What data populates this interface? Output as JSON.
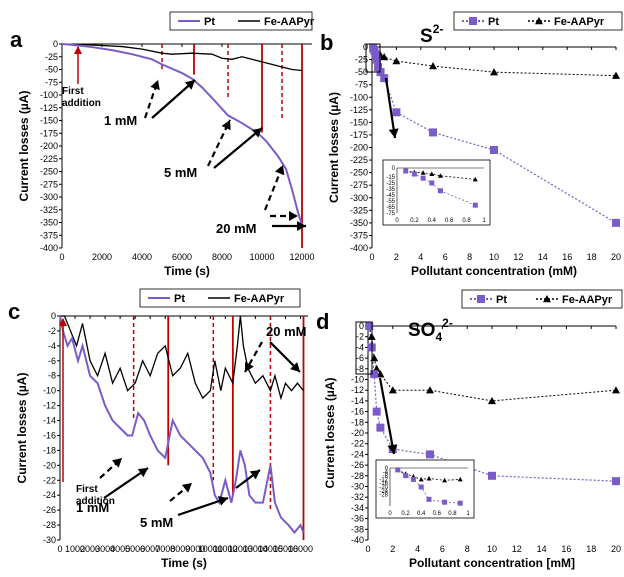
{
  "colors": {
    "pt": "#7b5bc9",
    "fe": "#000000",
    "marker": "#c00000"
  },
  "panels": {
    "a": {
      "label": "a",
      "type": "line",
      "xlabel": "Time (s)",
      "ylabel": "Current losses (µA)",
      "xlim": [
        0,
        12500
      ],
      "ylim": [
        -400,
        0
      ],
      "xticks": [
        0,
        2000,
        4000,
        6000,
        8000,
        10000,
        12000
      ],
      "yticks": [
        0,
        -25,
        -50,
        -75,
        -100,
        -125,
        -150,
        -175,
        -200,
        -225,
        -250,
        -275,
        -300,
        -325,
        -350,
        -375,
        -400
      ],
      "legend": [
        "Pt",
        "Fe-AAPyr"
      ],
      "series": {
        "Pt": {
          "x": [
            0,
            600,
            1500,
            2500,
            3500,
            4500,
            5000,
            6000,
            6500,
            7000,
            7600,
            8300,
            9000,
            9800,
            10200,
            10800,
            11200,
            11500,
            11800,
            12000
          ],
          "y": [
            0,
            -2,
            -6,
            -12,
            -20,
            -30,
            -40,
            -57,
            -68,
            -85,
            -110,
            -140,
            -155,
            -175,
            -190,
            -220,
            -245,
            -285,
            -330,
            -355
          ]
        },
        "Fe-AAPyr": {
          "x": [
            0,
            1000,
            2000,
            3000,
            4000,
            5000,
            5500,
            6500,
            7500,
            8000,
            8500,
            9000,
            10000,
            10500,
            11000,
            11500,
            12000
          ],
          "y": [
            0,
            -1,
            -3,
            -5,
            -10,
            -18,
            -20,
            -18,
            -20,
            -28,
            -30,
            -25,
            -35,
            -40,
            -45,
            -50,
            -52
          ]
        }
      },
      "dashed_markers": [
        5000,
        8300,
        11000
      ],
      "solid_markers": [
        6600,
        10000,
        12000
      ],
      "first_addition_x": 800,
      "first_addition_text": [
        "First",
        "addition"
      ],
      "annotations": [
        "1 mM",
        "5 mM",
        "20 mM"
      ]
    },
    "b": {
      "label": "b",
      "type": "line",
      "ion": "S",
      "ion_sup": "2-",
      "xlabel": "Pollutant concentration (mM)",
      "ylabel": "Current losses (µA)",
      "xlim": [
        0,
        20
      ],
      "ylim": [
        -400,
        0
      ],
      "xticks": [
        0,
        2,
        4,
        6,
        8,
        10,
        12,
        14,
        16,
        18,
        20
      ],
      "yticks": [
        0,
        -25,
        -50,
        -75,
        -100,
        -125,
        -150,
        -175,
        -200,
        -225,
        -250,
        -275,
        -300,
        -325,
        -350,
        -375,
        -400
      ],
      "legend": [
        "Pt",
        "Fe-AAPyr"
      ],
      "series": {
        "Pt": {
          "x": [
            0.1,
            0.2,
            0.3,
            0.4,
            0.5,
            0.7,
            1,
            2,
            5,
            10,
            20
          ],
          "y": [
            -3,
            -8,
            -15,
            -25,
            -40,
            -50,
            -62,
            -130,
            -170,
            -205,
            -350
          ]
        },
        "Fe-AAPyr": {
          "x": [
            0.1,
            0.2,
            0.3,
            0.4,
            0.5,
            0.7,
            1,
            2,
            5,
            10,
            20
          ],
          "y": [
            -3,
            -6,
            -8,
            -10,
            -14,
            -17,
            -20,
            -28,
            -38,
            -50,
            -57
          ]
        }
      },
      "inset": {
        "xlim": [
          0,
          1
        ],
        "ylim": [
          -75,
          0
        ],
        "xticks": [
          0,
          0.2,
          0.4,
          0.6,
          0.8,
          1
        ],
        "yticks": [
          0,
          -15,
          -25,
          -35,
          -45,
          -55,
          -65,
          -75
        ],
        "series": {
          "Pt": {
            "x": [
              0.1,
              0.2,
              0.3,
              0.4,
              0.5,
              0.9
            ],
            "y": [
              -5,
              -10,
              -17,
              -25,
              -38,
              -62
            ]
          },
          "Fe-AAPyr": {
            "x": [
              0.1,
              0.2,
              0.3,
              0.4,
              0.5,
              0.9
            ],
            "y": [
              -5,
              -7,
              -8,
              -10,
              -13,
              -19
            ]
          }
        }
      }
    },
    "c": {
      "label": "c",
      "type": "line",
      "xlabel": "Time (s)",
      "ylabel": "Current losses (µA)",
      "xlim": [
        0,
        16500
      ],
      "ylim": [
        -30,
        0
      ],
      "xticks": [
        0,
        1000,
        2000,
        3000,
        4000,
        5000,
        6000,
        7000,
        8000,
        9000,
        10000,
        11000,
        12000,
        13000,
        14000,
        15000,
        16000
      ],
      "yticks": [
        0,
        -2,
        -4,
        -6,
        -8,
        -10,
        -12,
        -14,
        -16,
        -18,
        -20,
        -22,
        -24,
        -26,
        -28,
        -30
      ],
      "legend": [
        "Pt",
        "Fe-AAPyr"
      ],
      "series": {
        "Pt": {
          "x": [
            0,
            200,
            500,
            800,
            1200,
            1500,
            2000,
            2500,
            3000,
            3500,
            4000,
            4500,
            4800,
            5200,
            5600,
            6000,
            6500,
            7000,
            7200,
            7500,
            8000,
            8500,
            9000,
            9500,
            10000,
            10300,
            10600,
            11000,
            11400,
            11700,
            12000,
            12300,
            12600,
            13000,
            13500,
            14000,
            14300,
            14700,
            15200,
            15600,
            16000,
            16200
          ],
          "y": [
            0,
            -2,
            -4,
            -3,
            -6,
            -4,
            -8,
            -9,
            -12,
            -14,
            -15,
            -16,
            -16,
            -13,
            -14,
            -16,
            -18,
            -19,
            -17,
            -14,
            -16,
            -17,
            -18,
            -19,
            -21,
            -24,
            -25,
            -22,
            -25,
            -22,
            -18,
            -20,
            -24,
            -25,
            -25,
            -20,
            -25,
            -27,
            -28,
            -29,
            -28,
            -29
          ]
        },
        "Fe-AAPyr": {
          "x": [
            0,
            300,
            700,
            1100,
            1500,
            2000,
            2500,
            3000,
            3500,
            4000,
            4500,
            5000,
            5500,
            6000,
            6500,
            7000,
            7500,
            8000,
            8500,
            9000,
            9500,
            10000,
            10300,
            10700,
            11000,
            11500,
            11800,
            12000,
            12200,
            12500,
            13000,
            13500,
            14000,
            14300,
            14700,
            15000,
            15400,
            15800,
            16200
          ],
          "y": [
            0,
            0,
            -2,
            -4,
            -1,
            -6,
            -8,
            -5,
            -9,
            -7,
            -10,
            -9,
            -6,
            -8,
            -5,
            -4,
            -8,
            -7,
            -5,
            -9,
            -11,
            -10,
            -6,
            -10,
            -7,
            -9,
            -4,
            0,
            -4,
            -7,
            -9,
            -8,
            -10,
            -8,
            -11,
            -9,
            -10,
            -9,
            -10
          ]
        }
      },
      "dashed_markers": [
        4900,
        10200,
        14000
      ],
      "solid_markers": [
        7200,
        11500,
        16200
      ],
      "first_addition_x": 200,
      "first_addition_text": [
        "First",
        "addition"
      ],
      "annotations": [
        "1 mM",
        "5 mM",
        "20 mM"
      ]
    },
    "d": {
      "label": "d",
      "type": "line",
      "ion": "SO",
      "ion_sub": "4",
      "ion_sup": "2-",
      "xlabel": "Pollutant concentration [mM]",
      "ylabel": "Current losses (µA)",
      "xlim": [
        0,
        20
      ],
      "ylim": [
        -40,
        0
      ],
      "xticks": [
        0,
        2,
        4,
        6,
        8,
        10,
        12,
        14,
        16,
        18,
        20
      ],
      "yticks": [
        0,
        -2,
        -4,
        -6,
        -8,
        -10,
        -12,
        -14,
        -16,
        -18,
        -20,
        -22,
        -24,
        -26,
        -28,
        -30,
        -32,
        -34,
        -36,
        -38,
        -40
      ],
      "legend": [
        "Pt",
        "Fe-AAPyr"
      ],
      "series": {
        "Pt": {
          "x": [
            0.1,
            0.3,
            0.5,
            0.7,
            1,
            2,
            5,
            10,
            20
          ],
          "y": [
            0,
            -4,
            -9,
            -16,
            -19,
            -23,
            -24,
            -28,
            -29
          ]
        },
        "Fe-AAPyr": {
          "x": [
            0.1,
            0.3,
            0.5,
            0.7,
            1,
            2,
            5,
            10,
            20
          ],
          "y": [
            0,
            -2,
            -6,
            -8,
            -9,
            -12,
            -12,
            -14,
            -12
          ]
        }
      },
      "inset": {
        "xlim": [
          0,
          1
        ],
        "ylim": [
          -40,
          0
        ],
        "xticks": [
          0,
          0.2,
          0.4,
          0.6,
          0.8,
          1
        ],
        "yticks": [
          0,
          -4,
          -8,
          -12,
          -16,
          -20,
          -24,
          -28
        ],
        "series": {
          "Pt": {
            "x": [
              0.1,
              0.2,
              0.3,
              0.4,
              0.5,
              0.7,
              0.9
            ],
            "y": [
              -2,
              -8,
              -12,
              -20,
              -33,
              -36,
              -37
            ]
          },
          "Fe-AAPyr": {
            "x": [
              0.1,
              0.2,
              0.3,
              0.4,
              0.5,
              0.7,
              0.9
            ],
            "y": [
              -2,
              -6,
              -9,
              -12,
              -11,
              -13,
              -12
            ]
          }
        }
      }
    }
  }
}
